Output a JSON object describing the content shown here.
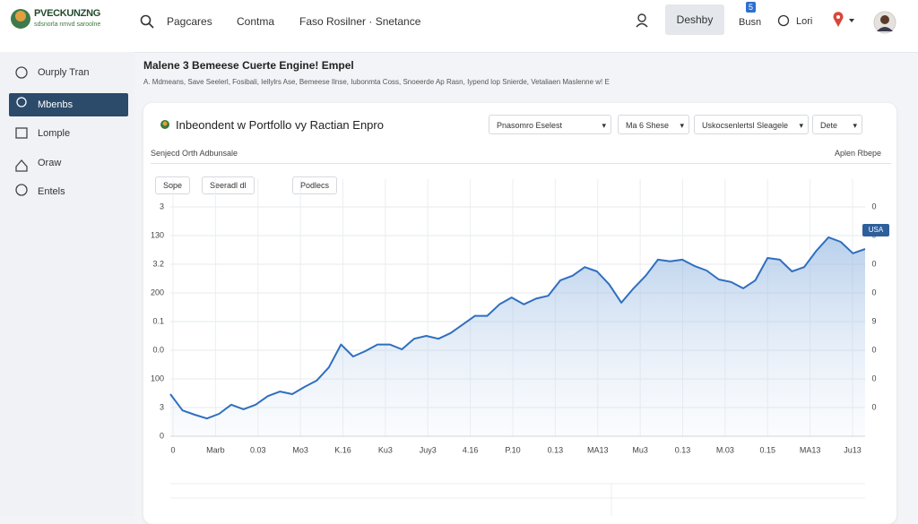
{
  "header": {
    "logo": "PVECKUNZNG",
    "logo_sub": "sdsnorla nmvd saroolne",
    "nav": [
      "Pagcares",
      "Contma",
      "Faso Rosilner · Snetance"
    ],
    "button": "Deshby",
    "badge": 5,
    "user_links": [
      "Busn",
      "Lori"
    ]
  },
  "sidebar": {
    "items": [
      "Ourply Tran",
      "Mbenbs",
      "Lomple",
      "Oraw",
      "Entels"
    ]
  },
  "page": {
    "title": "Malene 3 Bemeese Cuerte Engine! Empel",
    "subtitle": "A. Mdmeans, Save Seelerl, Fosibali, Iellylrs Ase, Bemeese Ilnse, Iubonmta Coss, Snoeerde Ap Rasn, Iypend lop Snierde, Vetaliaen Maslenne w! E"
  },
  "card": {
    "title": "Inbeondent w Portfollo vy Ractian Enpro",
    "filters": [
      "Pnasomro Eselest",
      "Ma 6 Shese",
      "Uskocsenlertsl Sleagele",
      "Dete"
    ],
    "label_left": "Senjecd Orth Adbunsale",
    "label_right": "Aplen Rbepe",
    "buttons": [
      "Sope",
      "Seeradl dl",
      "Podlecs"
    ],
    "tag": "USA"
  },
  "chart": {
    "type": "area",
    "color": "#2f6fbf",
    "categories": [
      "0",
      "Marb",
      "0.03",
      "Mo3",
      "K.16",
      "Ku3",
      "Juy3",
      "4.16",
      "P.10",
      "0.13",
      "MA13",
      "Mu3",
      "0.13",
      "M.03",
      "0.15",
      "MA13",
      "Ju13"
    ],
    "values": [
      1.47,
      0.9,
      0.75,
      0.62,
      0.78,
      1.1,
      0.94,
      1.1,
      1.4,
      1.56,
      1.47,
      1.72,
      1.94,
      2.4,
      3.2,
      2.78,
      2.97,
      3.2,
      3.2,
      3.03,
      3.4,
      3.5,
      3.4,
      3.6,
      3.9,
      4.2,
      4.2,
      4.6,
      4.84,
      4.6,
      4.8,
      4.9,
      5.44,
      5.6,
      5.9,
      5.75,
      5.3,
      4.66,
      5.16,
      5.6,
      6.16,
      6.1,
      6.16,
      5.94,
      5.78,
      5.47,
      5.38,
      5.16,
      5.44,
      6.22,
      6.16,
      5.75,
      5.9,
      6.47,
      6.94,
      6.78,
      6.38,
      6.53
    ],
    "ylim": [
      0,
      8
    ],
    "yticks": [
      0,
      {
        "value": 1,
        "label": "3"
      },
      {
        "value": 2,
        "label": "100"
      },
      {
        "value": 3,
        "label": "0.0"
      },
      {
        "value": 4,
        "label": "0.1"
      },
      {
        "value": 5,
        "label": "200"
      },
      {
        "value": 6,
        "label": "3.2"
      },
      {
        "value": 7,
        "label": "130"
      },
      {
        "value": 8,
        "label": "3"
      }
    ],
    "y2lim": [
      0,
      8
    ],
    "y2ticks": [
      {
        "value": 1,
        "label": "0"
      },
      {
        "value": 2,
        "label": "0"
      },
      {
        "value": 3,
        "label": "0"
      },
      {
        "value": 4,
        "label": "9"
      },
      {
        "value": 5,
        "label": "0"
      },
      {
        "value": 6,
        "label": "0"
      },
      {
        "value": 7,
        "label": "0"
      },
      {
        "value": 8,
        "label": "0"
      }
    ],
    "grid": true
  }
}
